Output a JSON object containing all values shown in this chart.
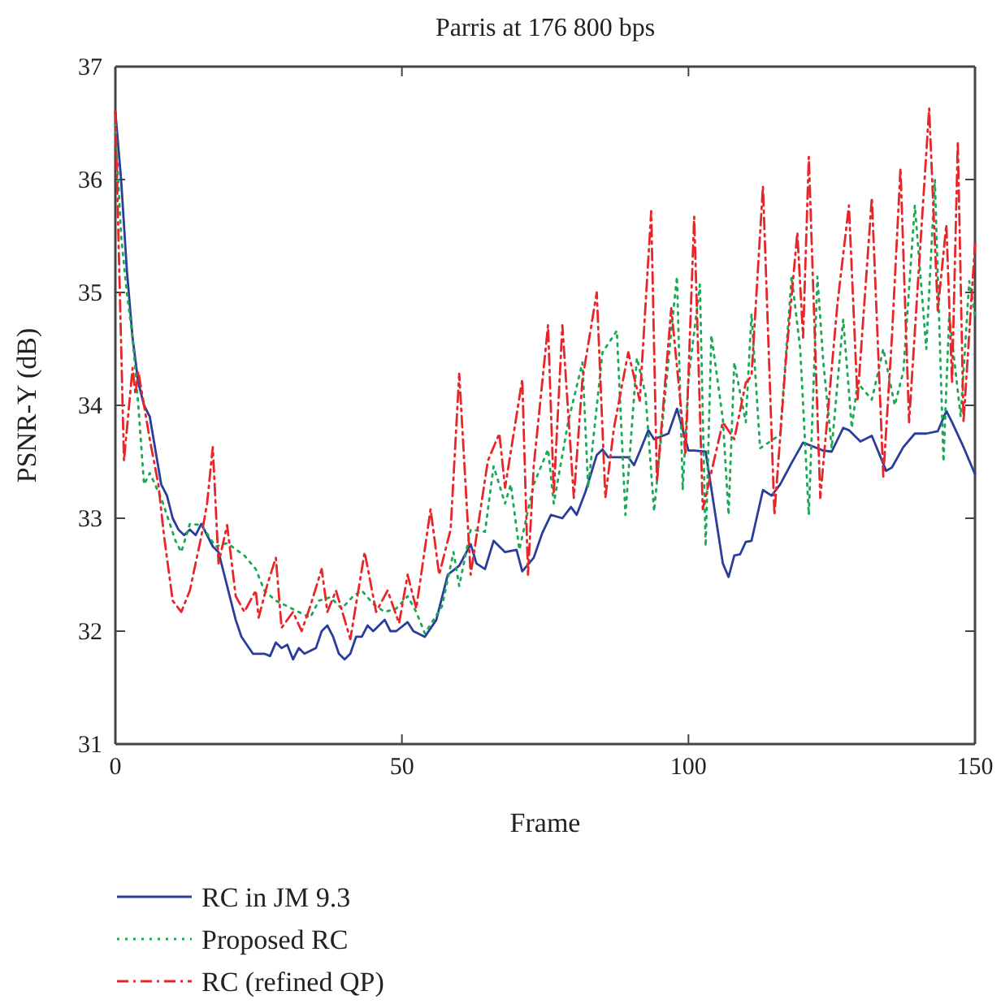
{
  "chart_data": {
    "type": "line",
    "title": "Parris at 176 800 bps",
    "xlabel": "Frame",
    "ylabel": "PSNR-Y (dB)",
    "xlim": [
      0,
      150
    ],
    "ylim": [
      31,
      37
    ],
    "xticks": [
      0,
      50,
      100,
      150
    ],
    "yticks": [
      31,
      32,
      33,
      34,
      35,
      36,
      37
    ],
    "grid": false,
    "legend": "bottom",
    "marker": "none",
    "series": [
      {
        "name": "RC in JM 9.3",
        "color": "#2a3d9a",
        "line_style": "solid",
        "x": [
          0,
          1,
          2,
          3,
          4,
          5,
          6,
          7,
          8,
          9,
          10,
          11,
          12,
          13,
          14,
          15,
          16,
          17,
          18,
          19,
          20,
          21,
          22,
          24,
          26,
          27,
          28,
          29,
          30,
          31,
          32,
          33,
          35,
          36,
          37,
          38,
          39,
          40,
          41,
          42,
          43,
          44,
          45,
          46,
          47,
          48,
          49,
          51,
          52,
          54,
          56,
          58,
          60,
          62,
          63,
          64.5,
          66,
          68,
          70,
          71,
          73,
          74.5,
          76,
          78,
          79.5,
          80.5,
          82,
          84,
          85,
          86,
          89.5,
          90.5,
          91.5,
          93,
          94,
          96.5,
          98,
          100,
          101,
          103,
          106,
          107,
          108,
          109,
          110,
          111,
          113,
          114.5,
          116,
          118,
          120,
          121.5,
          123.5,
          125,
          127,
          128,
          130,
          132,
          134.5,
          135.5,
          137.5,
          139.5,
          141.5,
          143.5,
          145,
          146,
          148,
          150
        ],
        "values": [
          36.6,
          36.0,
          35.2,
          34.6,
          34.2,
          34.0,
          33.9,
          33.6,
          33.3,
          33.2,
          33.0,
          32.9,
          32.85,
          32.9,
          32.85,
          32.95,
          32.85,
          32.75,
          32.7,
          32.5,
          32.3,
          32.1,
          31.95,
          31.8,
          31.8,
          31.78,
          31.9,
          31.85,
          31.88,
          31.75,
          31.85,
          31.8,
          31.85,
          32.0,
          32.05,
          31.95,
          31.8,
          31.75,
          31.8,
          31.95,
          31.95,
          32.05,
          32.0,
          32.05,
          32.1,
          32.0,
          32.0,
          32.08,
          32.0,
          31.95,
          32.1,
          32.5,
          32.58,
          32.77,
          32.6,
          32.55,
          32.8,
          32.7,
          32.72,
          32.53,
          32.65,
          32.87,
          33.03,
          33.0,
          33.1,
          33.03,
          33.23,
          33.56,
          33.61,
          33.54,
          33.54,
          33.47,
          33.59,
          33.78,
          33.7,
          33.75,
          33.97,
          33.6,
          33.6,
          33.59,
          32.6,
          32.48,
          32.67,
          32.68,
          32.79,
          32.8,
          33.25,
          33.2,
          33.3,
          33.49,
          33.67,
          33.64,
          33.6,
          33.59,
          33.8,
          33.78,
          33.68,
          33.73,
          33.42,
          33.45,
          33.63,
          33.75,
          33.75,
          33.77,
          33.95,
          33.85,
          33.63,
          33.39
        ]
      },
      {
        "name": "Proposed RC",
        "color": "#1aaa55",
        "line_style": "dotted",
        "x": [
          0,
          1,
          2,
          3,
          4,
          5,
          6,
          8,
          10.5,
          11.5,
          13,
          15,
          17.5,
          19.5,
          22.5,
          24.5,
          26,
          28,
          30,
          32,
          34,
          35.5,
          37.5,
          39.5,
          41.5,
          43,
          45,
          47,
          49,
          51,
          52.5,
          54,
          57,
          59,
          60,
          62,
          64.5,
          66,
          68,
          69,
          70.5,
          73,
          75.5,
          76.5,
          79,
          81.5,
          82.5,
          85,
          87.5,
          89,
          91,
          92.5,
          94,
          97,
          98,
          99,
          100,
          102,
          103,
          104,
          106,
          107,
          108,
          110,
          111,
          112.5,
          116,
          118,
          119.5,
          121,
          122.5,
          123.5,
          125,
          127,
          128.5,
          129.5,
          132,
          134,
          136,
          137.5,
          139.5,
          141.5,
          143,
          144.5,
          145.5,
          147.5,
          149,
          150
        ],
        "values": [
          36.5,
          35.5,
          35.0,
          34.6,
          34.0,
          33.3,
          33.4,
          33.18,
          32.8,
          32.7,
          32.95,
          32.94,
          32.75,
          32.78,
          32.67,
          32.55,
          32.36,
          32.27,
          32.22,
          32.17,
          32.12,
          32.27,
          32.3,
          32.2,
          32.31,
          32.36,
          32.24,
          32.17,
          32.2,
          32.31,
          32.17,
          31.98,
          32.22,
          32.7,
          32.4,
          32.9,
          32.88,
          33.46,
          33.13,
          33.3,
          32.72,
          33.3,
          33.61,
          33.13,
          33.85,
          34.38,
          33.27,
          34.47,
          34.66,
          33.03,
          34.42,
          34.1,
          33.06,
          34.66,
          35.14,
          33.25,
          34.23,
          35.07,
          32.75,
          34.62,
          33.88,
          33.03,
          34.38,
          33.85,
          34.81,
          33.62,
          33.74,
          35.14,
          34.5,
          33.03,
          35.14,
          34.4,
          33.62,
          34.76,
          33.8,
          34.2,
          34.05,
          34.5,
          34.0,
          34.3,
          35.77,
          34.5,
          36.0,
          33.5,
          34.8,
          33.9,
          35.1,
          34.8
        ]
      },
      {
        "name": "RC (refined QP)",
        "color": "#e8262a",
        "line_style": "dashed",
        "x": [
          0,
          1.5,
          3,
          3.5,
          4,
          6,
          7.5,
          8.5,
          10,
          11.5,
          13,
          15,
          16,
          17,
          18,
          19.5,
          21,
          22.5,
          24.5,
          25,
          26.5,
          28,
          29,
          31,
          32.5,
          34,
          36,
          37,
          38.5,
          41,
          43.5,
          45.5,
          47.5,
          49.5,
          51,
          52.5,
          55,
          56.5,
          58.5,
          60,
          62,
          65,
          67,
          68,
          71,
          72,
          73,
          75.5,
          76.5,
          78,
          80,
          81.5,
          84,
          85.5,
          87,
          89.5,
          91.5,
          93.5,
          94.5,
          97,
          99.5,
          101,
          102.5,
          106,
          108,
          110,
          111,
          113,
          115,
          117,
          119,
          120,
          121,
          123,
          126,
          128,
          129.5,
          132,
          134,
          135.5,
          137,
          138.5,
          140,
          142,
          143.5,
          145,
          146,
          147,
          148,
          150
        ],
        "values": [
          36.6,
          33.51,
          34.33,
          34.1,
          34.3,
          33.7,
          33.3,
          32.84,
          32.27,
          32.17,
          32.36,
          32.84,
          33.13,
          33.63,
          32.6,
          32.94,
          32.31,
          32.17,
          32.36,
          32.12,
          32.41,
          32.65,
          32.03,
          32.17,
          32.0,
          32.22,
          32.55,
          32.17,
          32.36,
          31.93,
          32.7,
          32.17,
          32.36,
          32.07,
          32.5,
          32.2,
          33.08,
          32.5,
          32.9,
          34.28,
          32.5,
          33.51,
          33.75,
          33.27,
          34.23,
          32.5,
          33.46,
          34.71,
          33.22,
          34.71,
          33.18,
          34.23,
          35.0,
          33.18,
          33.8,
          34.47,
          34.04,
          35.72,
          33.32,
          34.86,
          33.56,
          35.67,
          33.08,
          33.85,
          33.7,
          34.2,
          34.26,
          35.94,
          33.03,
          34.4,
          35.53,
          34.6,
          36.2,
          33.18,
          34.9,
          35.77,
          34.05,
          35.84,
          33.37,
          34.6,
          36.1,
          33.85,
          35.05,
          36.63,
          34.84,
          35.6,
          34.2,
          36.34,
          33.85,
          35.43
        ]
      }
    ]
  }
}
